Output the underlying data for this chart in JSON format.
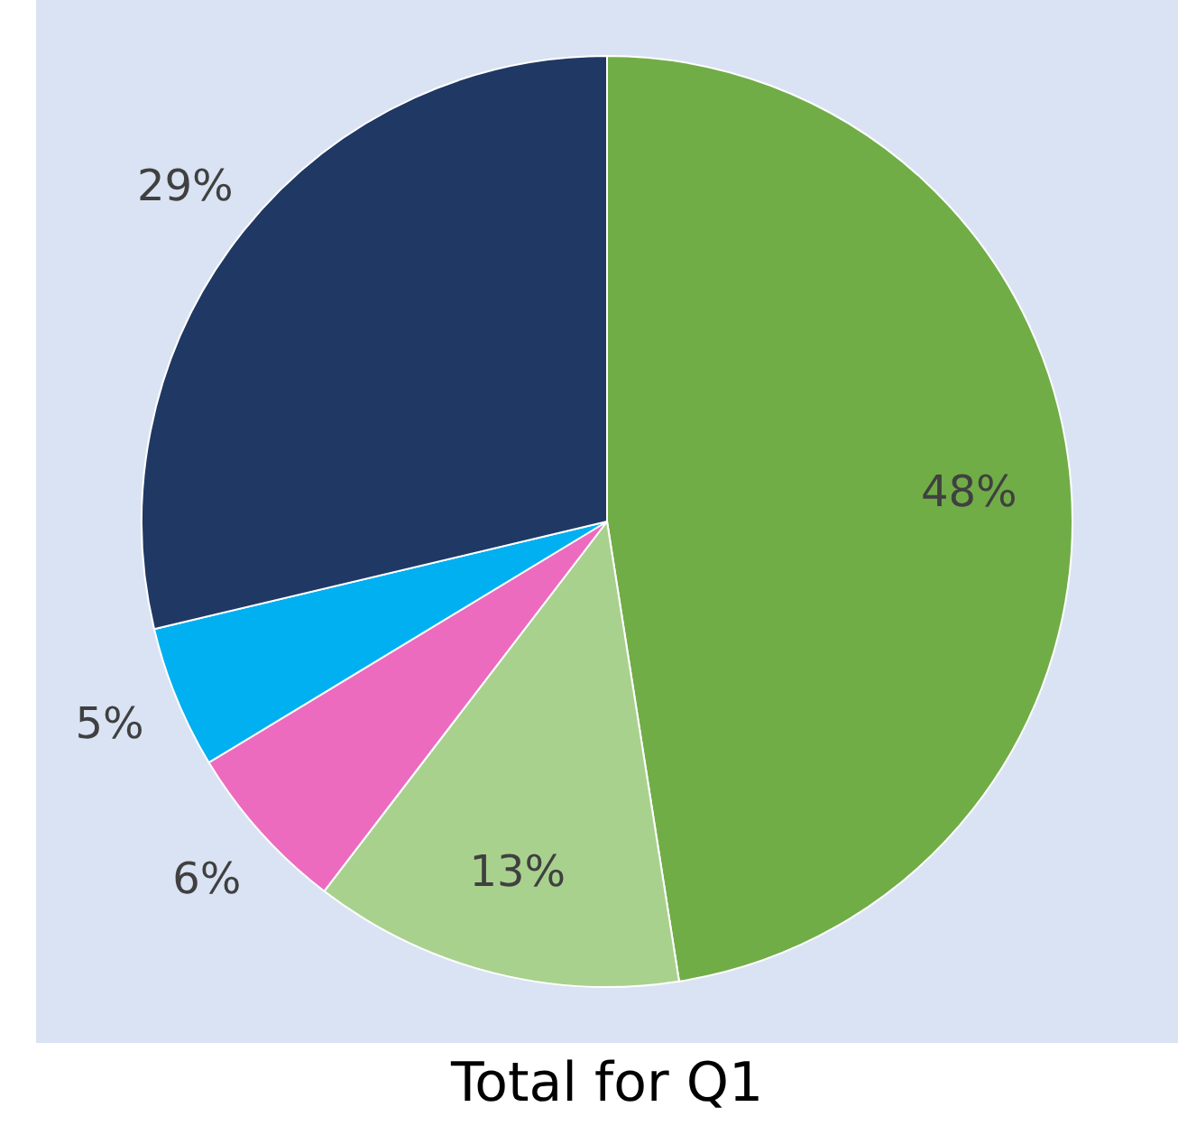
{
  "chart_data": {
    "type": "pie",
    "title": "Total for Q1",
    "categories": [
      null,
      null,
      null,
      null,
      null
    ],
    "values": [
      48,
      13,
      6,
      5,
      29
    ],
    "value_labels": [
      "48%",
      "13%",
      "6%",
      "5%",
      "29%"
    ],
    "colors": [
      "#70ad47",
      "#a9d18e",
      "#ec6bbf",
      "#00b0f0",
      "#203864"
    ],
    "legend": false
  }
}
